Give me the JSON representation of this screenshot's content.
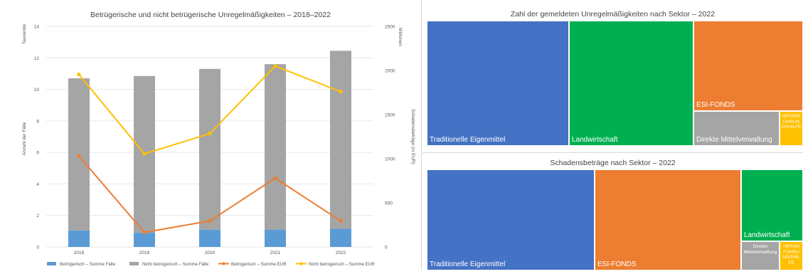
{
  "chart_data": [
    {
      "type": "bar",
      "title": "Betrügerische und nicht betrügerische Unregelmäßigkeiten – 2018–2022",
      "ylabel": "Anzahl der Fälle",
      "yunit": "Tausende",
      "y2label": "Schadensbeträge (in EUR)",
      "y2unit": "Millionen",
      "categories": [
        "2018",
        "2019",
        "2020",
        "2021",
        "2022"
      ],
      "ylim": [
        0,
        14
      ],
      "yticks": [
        "0",
        "2",
        "4",
        "6",
        "8",
        "10",
        "12",
        "14"
      ],
      "y2lim": [
        0,
        2500
      ],
      "y2ticks": [
        "0",
        "500",
        "1000",
        "1500",
        "2000",
        "2500"
      ],
      "series": [
        {
          "name": "Betrügerisch – Summe Fälle",
          "kind": "bar",
          "axis": "left",
          "color": "#5b9bd5",
          "values": [
            1.05,
            0.9,
            1.1,
            1.1,
            1.15
          ]
        },
        {
          "name": "Nicht betrügerisch – Summe Fälle",
          "kind": "bar",
          "axis": "left",
          "color": "#a5a5a5",
          "values": [
            9.65,
            9.95,
            10.2,
            10.5,
            11.3
          ]
        },
        {
          "name": "Betrügerisch – Summe EUR",
          "kind": "line",
          "axis": "right",
          "color": "#ed7d31",
          "values": [
            1030,
            165,
            295,
            780,
            295
          ]
        },
        {
          "name": "Nicht betrügerisch – Summe EUR",
          "kind": "line",
          "axis": "right",
          "color": "#ffc000",
          "values": [
            1955,
            1055,
            1285,
            2050,
            1760
          ]
        }
      ],
      "legend": "bottom"
    },
    {
      "type": "treemap",
      "title": "Zahl der gemeldeten Unregelmäßigkeiten nach Sektor – 2022",
      "labels": [
        "Traditionelle Eigenmittel",
        "Landwirtschaft",
        "ESI-FONDS",
        "Direkte Mittelverwaltung",
        "HERANFÜHRUNGSHILFE"
      ],
      "shown_labels": [
        "Traditionelle Eigenmittel",
        "Landwirtschaft",
        "ESI-FONDS",
        "Direkte Mittelverwaltung",
        "HERANF ÜHRUN GSHILFE"
      ],
      "values": [
        4000,
        3100,
        3200,
        2100,
        600
      ],
      "colors": [
        "#4472c4",
        "#00b050",
        "#ed7d31",
        "#a5a5a5",
        "#ffc000"
      ]
    },
    {
      "type": "treemap",
      "title": "Schadensbeträge nach Sektor – 2022",
      "labels": [
        "Traditionelle Eigenmittel",
        "ESI-FONDS",
        "Landwirtschaft",
        "Direkte Mittelverwaltung",
        "HERANFÜHRUNGSHILFE"
      ],
      "shown_labels": [
        "Traditionelle Eigenmittel",
        "ESI-FONDS",
        "Landwirtschaft",
        "Direkte Mittelverwaltung",
        "HERAN FÜHRU NGSHIL FE"
      ],
      "values": [
        810,
        700,
        260,
        75,
        40
      ],
      "colors": [
        "#4472c4",
        "#ed7d31",
        "#00b050",
        "#a5a5a5",
        "#ffc000"
      ]
    }
  ]
}
